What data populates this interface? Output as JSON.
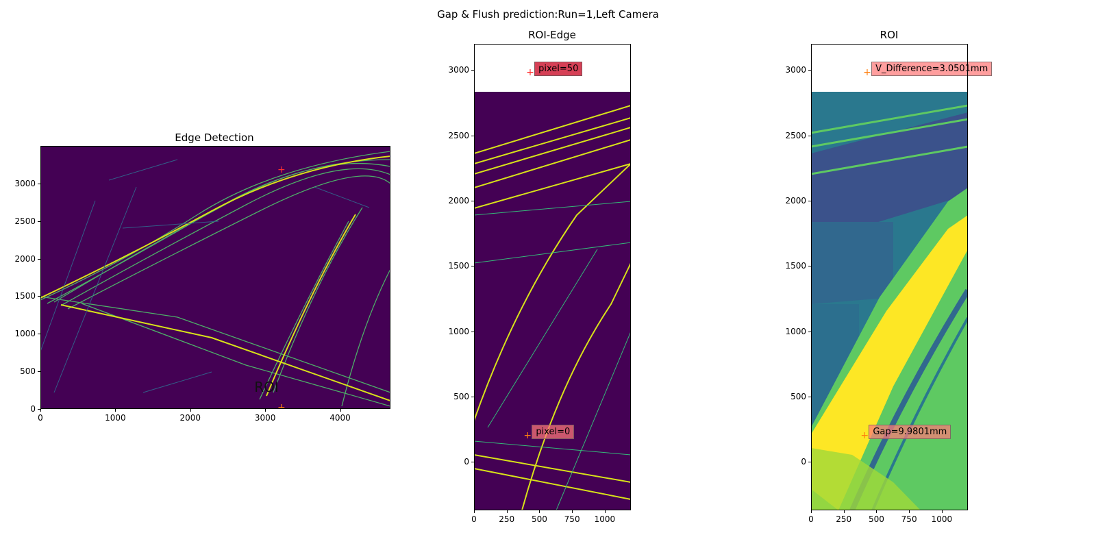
{
  "figure": {
    "title": "Gap & Flush prediction:Run=1,Left Camera"
  },
  "chart_data": [
    {
      "type": "image",
      "title": "Edge Detection",
      "xlim": [
        0,
        4672
      ],
      "ylim": [
        3500,
        0
      ],
      "xticks": [
        0,
        1000,
        2000,
        3000,
        4000
      ],
      "yticks": [
        0,
        500,
        1000,
        1500,
        2000,
        2500,
        3000
      ],
      "colormap": "viridis",
      "roi_box": {
        "label": "ROI",
        "x0": 2800,
        "x1": 4000,
        "y0": 200,
        "y1": 3400,
        "color": "#0000ff"
      },
      "markers": [
        {
          "x": 3200,
          "y": 3180,
          "color": "#ff3030"
        },
        {
          "x": 3200,
          "y": 20,
          "color": "#ff7f0e"
        }
      ]
    },
    {
      "type": "image",
      "title": "ROI-Edge",
      "xlim": [
        0,
        1200
      ],
      "ylim": [
        3200,
        -370
      ],
      "xticks": [
        0,
        250,
        500,
        750,
        1000
      ],
      "yticks": [
        0,
        500,
        1000,
        1500,
        2000,
        2500,
        3000
      ],
      "colormap": "viridis",
      "annotations": [
        {
          "text": "pixel=0",
          "x": 400,
          "y": 200
        },
        {
          "text": "pixel=50",
          "x": 420,
          "y": 2980
        }
      ]
    },
    {
      "type": "image",
      "title": "ROI",
      "xlim": [
        0,
        1200
      ],
      "ylim": [
        3200,
        -370
      ],
      "xticks": [
        0,
        250,
        500,
        750,
        1000
      ],
      "yticks": [
        0,
        500,
        1000,
        1500,
        2000,
        2500,
        3000
      ],
      "colormap": "viridis",
      "annotations": [
        {
          "text": "Gap=9.9801mm",
          "x": 400,
          "y": 200
        },
        {
          "text": "V_Difference=3.0501mm",
          "x": 420,
          "y": 2980
        }
      ]
    }
  ]
}
